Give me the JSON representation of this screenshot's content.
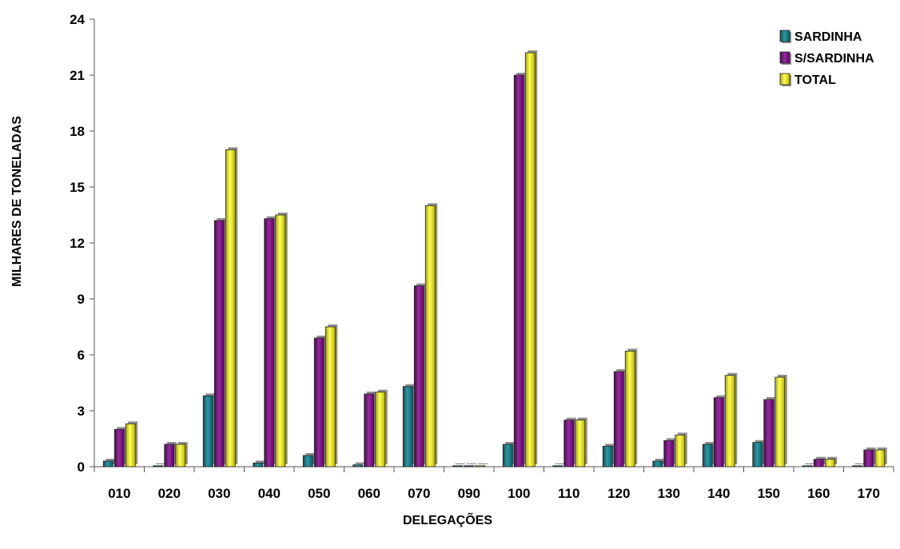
{
  "chart_data": {
    "type": "bar",
    "xlabel": "DELEGAÇÕES",
    "ylabel": "MILHARES DE TONELADAS",
    "ylim": [
      0,
      24
    ],
    "yticks": [
      "0",
      "3",
      "6",
      "9",
      "12",
      "15",
      "18",
      "21",
      "24"
    ],
    "categories": [
      "010",
      "020",
      "030",
      "040",
      "050",
      "060",
      "070",
      "090",
      "100",
      "110",
      "120",
      "130",
      "140",
      "150",
      "160",
      "170"
    ],
    "series": [
      {
        "name": "SARDINHA",
        "color": "#1e7b86",
        "values": [
          0.3,
          0.0,
          3.8,
          0.2,
          0.6,
          0.1,
          4.3,
          0.0,
          1.2,
          0.0,
          1.1,
          0.3,
          1.2,
          1.3,
          0.0,
          0.0
        ]
      },
      {
        "name": "S/SARDINHA",
        "color": "#7a1580",
        "values": [
          2.0,
          1.2,
          13.2,
          13.3,
          6.9,
          3.9,
          9.7,
          0.0,
          21.0,
          2.5,
          5.1,
          1.4,
          3.7,
          3.6,
          0.4,
          0.9
        ]
      },
      {
        "name": "TOTAL",
        "color": "#e8e600",
        "values": [
          2.3,
          1.2,
          17.0,
          13.5,
          7.5,
          4.0,
          14.0,
          0.0,
          22.2,
          2.5,
          6.2,
          1.7,
          4.9,
          4.8,
          0.4,
          0.9
        ]
      }
    ],
    "legend_position": "top-right",
    "grid": false
  }
}
